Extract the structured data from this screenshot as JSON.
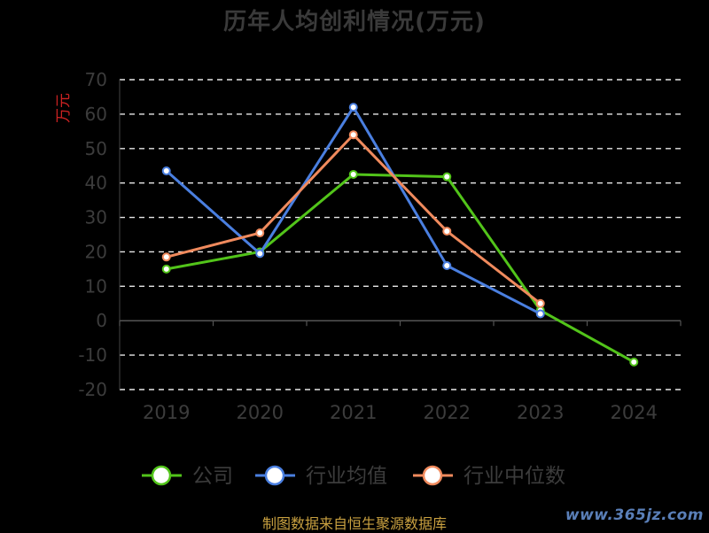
{
  "chart_data": {
    "type": "line",
    "title": "历年人均创利情况(万元)",
    "ylabel": "万元",
    "xlabel": "",
    "categories": [
      "2019",
      "2020",
      "2021",
      "2022",
      "2023",
      "2024"
    ],
    "ylim": [
      -20,
      70
    ],
    "yticks": [
      70,
      60,
      50,
      40,
      30,
      20,
      10,
      0,
      -10,
      -20
    ],
    "grid": true,
    "legend_position": "bottom",
    "series": [
      {
        "name": "公司",
        "color": "#52c41a",
        "values": [
          15.0,
          20.0,
          42.5,
          41.8,
          3.0,
          -12.0
        ]
      },
      {
        "name": "行业均值",
        "color": "#4a7fe0",
        "values": [
          43.5,
          19.5,
          62.0,
          16.0,
          2.0,
          null
        ]
      },
      {
        "name": "行业中位数",
        "color": "#f08a5d",
        "values": [
          18.5,
          25.5,
          54.0,
          26.0,
          5.0,
          null
        ]
      }
    ]
  },
  "source": "制图数据来自恒生聚源数据库",
  "watermark": "www.365jz.com"
}
